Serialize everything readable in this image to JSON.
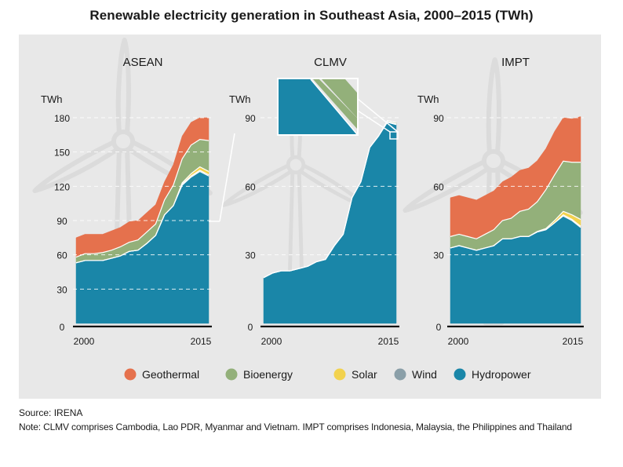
{
  "title": "Renewable electricity generation in Southeast Asia, 2000–2015 (TWh)",
  "source": "Source: IRENA",
  "note": "Note: CLMV comprises Cambodia, Lao PDR, Myanmar and Vietnam. IMPT comprises Indonesia, Malaysia, the Philippines and Thailand",
  "colors": {
    "Hydropower": "#1a86a8",
    "Wind": "#8a9fa8",
    "Solar": "#f2d24e",
    "Bioenergy": "#93b07a",
    "Geothermal": "#e5714d",
    "background_panel": "#e8e8e8"
  },
  "chart_data": [
    {
      "type": "area",
      "stacked": true,
      "title": "ASEAN",
      "ylabel": "TWh",
      "ylim": [
        0,
        180
      ],
      "yticks": [
        0,
        30,
        60,
        90,
        120,
        150,
        180
      ],
      "x": [
        2000,
        2001,
        2002,
        2003,
        2004,
        2005,
        2006,
        2007,
        2008,
        2009,
        2010,
        2011,
        2012,
        2013,
        2014,
        2015
      ],
      "xtick_labels": [
        "2000",
        "2015"
      ],
      "grid": true,
      "series": [
        {
          "name": "Hydropower",
          "values": [
            53,
            55,
            55,
            55,
            57,
            59,
            63,
            64,
            70,
            77,
            95,
            103,
            121,
            128,
            133,
            129
          ]
        },
        {
          "name": "Wind",
          "values": [
            0,
            0,
            0,
            0,
            0,
            0,
            0,
            0,
            0,
            0,
            0,
            0,
            1,
            1,
            1,
            1
          ]
        },
        {
          "name": "Solar",
          "values": [
            0,
            0,
            0,
            0,
            0,
            0,
            0,
            0,
            0,
            0,
            0,
            0,
            1,
            2,
            3,
            3
          ]
        },
        {
          "name": "Bioenergy",
          "values": [
            5,
            6,
            6,
            7,
            7,
            8,
            8,
            9,
            10,
            10,
            13,
            18,
            21,
            25,
            24,
            27
          ]
        },
        {
          "name": "Geothermal",
          "values": [
            17,
            17,
            17,
            16,
            17,
            17,
            18,
            17,
            17,
            17,
            16,
            18,
            20,
            20,
            19,
            20
          ]
        }
      ]
    },
    {
      "type": "area",
      "stacked": true,
      "title": "CLMV",
      "ylabel": "TWh",
      "ylim": [
        0,
        90
      ],
      "yticks": [
        0,
        30,
        60,
        90
      ],
      "x": [
        2000,
        2001,
        2002,
        2003,
        2004,
        2005,
        2006,
        2007,
        2008,
        2009,
        2010,
        2011,
        2012,
        2013,
        2014,
        2015
      ],
      "xtick_labels": [
        "2000",
        "2015"
      ],
      "grid": true,
      "series": [
        {
          "name": "Hydropower",
          "values": [
            20,
            22,
            23,
            23,
            24,
            25,
            27,
            28,
            34,
            39,
            55,
            62,
            77,
            82,
            88,
            87
          ]
        },
        {
          "name": "Wind",
          "values": [
            0,
            0,
            0,
            0,
            0,
            0,
            0,
            0,
            0,
            0,
            0,
            0,
            0,
            0,
            0.2,
            0.2
          ]
        },
        {
          "name": "Solar",
          "values": [
            0,
            0,
            0,
            0,
            0,
            0,
            0,
            0,
            0,
            0,
            0,
            0,
            0,
            0,
            0.1,
            0.1
          ]
        },
        {
          "name": "Bioenergy",
          "values": [
            0,
            0,
            0,
            0,
            0,
            0,
            0,
            0,
            0,
            0,
            0,
            0,
            0,
            0,
            0.5,
            0.6
          ]
        },
        {
          "name": "Geothermal",
          "values": [
            0,
            0,
            0,
            0,
            0,
            0,
            0,
            0,
            0,
            0,
            0,
            0,
            0,
            0,
            0,
            0
          ]
        }
      ]
    },
    {
      "type": "area",
      "stacked": true,
      "title": "IMPT",
      "ylabel": "TWh",
      "ylim": [
        0,
        90
      ],
      "yticks": [
        0,
        30,
        60,
        90
      ],
      "x": [
        2000,
        2001,
        2002,
        2003,
        2004,
        2005,
        2006,
        2007,
        2008,
        2009,
        2010,
        2011,
        2012,
        2013,
        2014,
        2015
      ],
      "xtick_labels": [
        "2000",
        "2015"
      ],
      "grid": true,
      "series": [
        {
          "name": "Hydropower",
          "values": [
            33,
            34,
            33,
            32,
            33,
            34,
            37,
            37,
            38,
            38,
            40,
            41,
            44,
            47,
            45,
            42
          ]
        },
        {
          "name": "Wind",
          "values": [
            0,
            0,
            0,
            0,
            0,
            0,
            0,
            0,
            0,
            0,
            0,
            0,
            0,
            0.5,
            0.5,
            0.5
          ]
        },
        {
          "name": "Solar",
          "values": [
            0,
            0,
            0,
            0,
            0,
            0,
            0,
            0,
            0,
            0,
            0.2,
            0.5,
            1,
            1.5,
            2,
            3
          ]
        },
        {
          "name": "Bioenergy",
          "values": [
            5,
            5,
            5,
            5,
            6,
            7,
            8,
            9,
            11,
            12,
            13,
            17,
            20,
            22,
            23,
            25
          ]
        },
        {
          "name": "Geothermal",
          "values": [
            17,
            17,
            17,
            17,
            17,
            17,
            17,
            18,
            18,
            18,
            18,
            18,
            19,
            19,
            19,
            20
          ]
        }
      ]
    }
  ],
  "legend": {
    "placement": "bottom",
    "items": [
      {
        "name": "Geothermal",
        "color": "#e5714d"
      },
      {
        "name": "Bioenergy",
        "color": "#93b07a"
      },
      {
        "name": "Solar",
        "color": "#f2d24e"
      },
      {
        "name": "Wind",
        "color": "#8a9fa8"
      },
      {
        "name": "Hydropower",
        "color": "#1a86a8"
      }
    ]
  }
}
